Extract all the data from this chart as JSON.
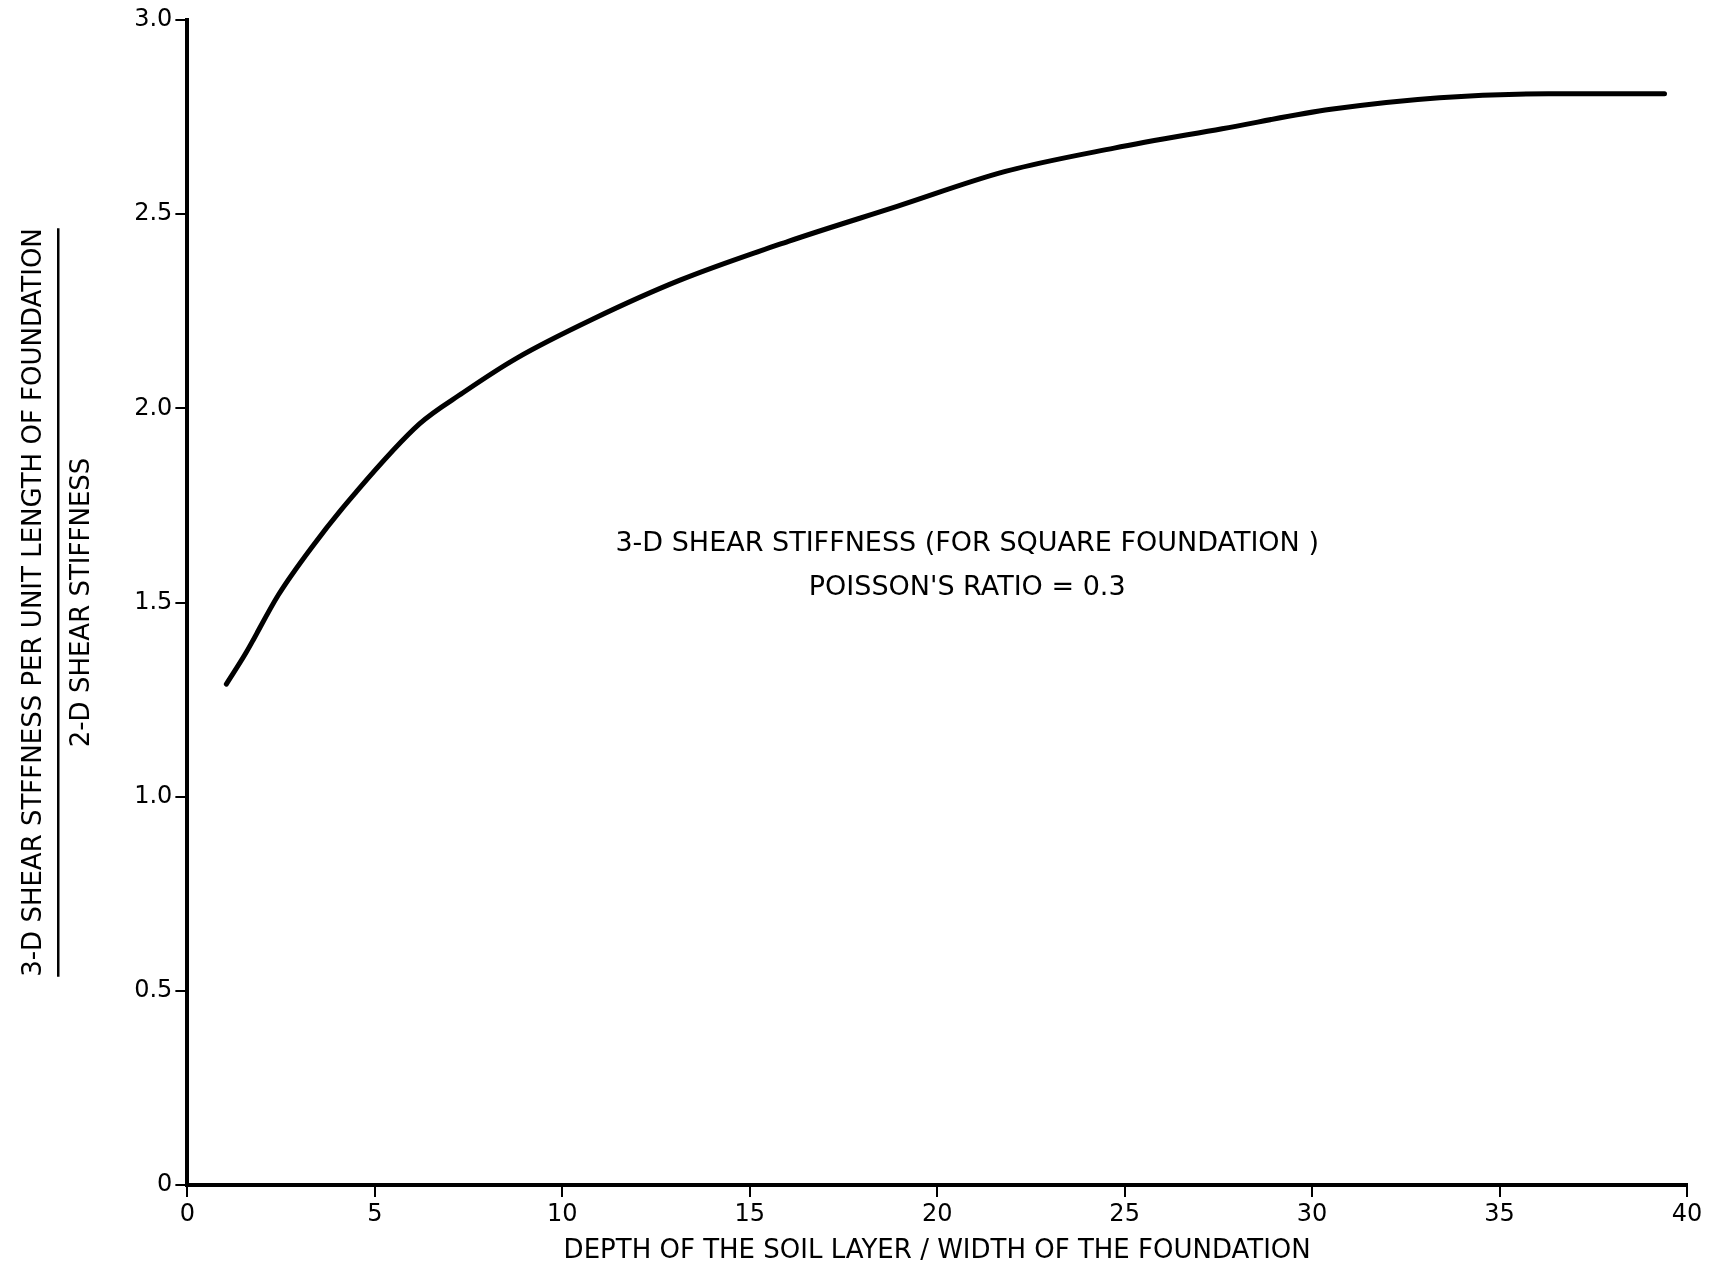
{
  "chart_data": {
    "type": "line",
    "xlabel": "DEPTH OF THE SOIL LAYER / WIDTH OF THE FOUNDATION",
    "ylabel": "3-D SHEAR STFFNESS PER UNIT LENGTH OF FOUNDATION\n2-D SHEAR STIFFNESS",
    "annotations": [
      "3-D SHEAR STIFFNESS (FOR SQUARE FOUNDATION )",
      "POISSON'S RATIO = 0.3"
    ],
    "xlim": [
      0,
      40
    ],
    "xticks": [
      0,
      5,
      10,
      15,
      20,
      25,
      30,
      35,
      40
    ],
    "ylim": [
      0,
      3
    ],
    "yticks": [
      0,
      {
        "value": 0.5,
        "label": "0.5"
      },
      {
        "value": 1,
        "label": "1.0"
      },
      {
        "value": 1.5,
        "label": "1.5"
      },
      {
        "value": 2,
        "label": "2.0"
      },
      {
        "value": 2.5,
        "label": "2.5"
      },
      {
        "value": 3,
        "label": "3.0"
      }
    ],
    "grid": false,
    "legend": false,
    "marker": "none",
    "line_style": "solid",
    "series": [
      {
        "color": "#000000",
        "x": [
          1.04,
          1.56,
          2.43,
          3.3,
          4.46,
          6.19,
          7.35,
          8.8,
          10.82,
          13.14,
          16.03,
          18.93,
          21.82,
          24.72,
          27.6,
          30.5,
          33.4,
          36.3,
          39.4
        ],
        "values": [
          1.29,
          1.37,
          1.52,
          1.64,
          1.78,
          1.96,
          2.04,
          2.13,
          2.23,
          2.33,
          2.43,
          2.52,
          2.61,
          2.67,
          2.72,
          2.77,
          2.8,
          2.81,
          2.81
        ]
      }
    ]
  }
}
